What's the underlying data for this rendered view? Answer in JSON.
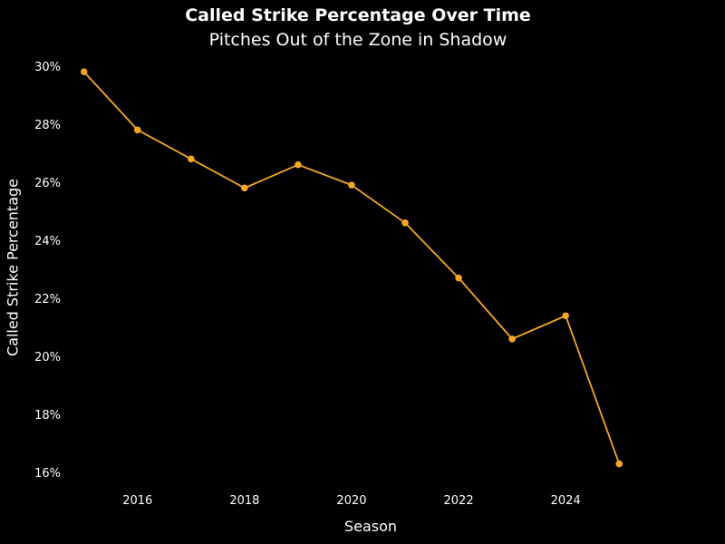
{
  "chart_data": {
    "type": "line",
    "title": "Called Strike Percentage Over Time",
    "subtitle": "Pitches Out of the Zone in Shadow",
    "xlabel": "Season",
    "ylabel": "Called Strike Percentage",
    "x": [
      2015,
      2016,
      2017,
      2018,
      2019,
      2020,
      2021,
      2022,
      2023,
      2024,
      2025
    ],
    "series": [
      {
        "values": [
          29.8,
          27.8,
          26.8,
          25.8,
          26.6,
          25.9,
          24.6,
          22.7,
          20.6,
          21.4,
          16.3
        ]
      }
    ],
    "xticks": [
      2016,
      2018,
      2020,
      2022,
      2024
    ],
    "yticks": [
      16,
      18,
      20,
      22,
      24,
      26,
      28,
      30
    ],
    "ytick_suffix": "%",
    "xlim": [
      2014.7,
      2026.3
    ],
    "ylim": [
      15.6,
      30.4
    ],
    "grid": false,
    "line_color": "#f5a623",
    "background": "#000000"
  }
}
